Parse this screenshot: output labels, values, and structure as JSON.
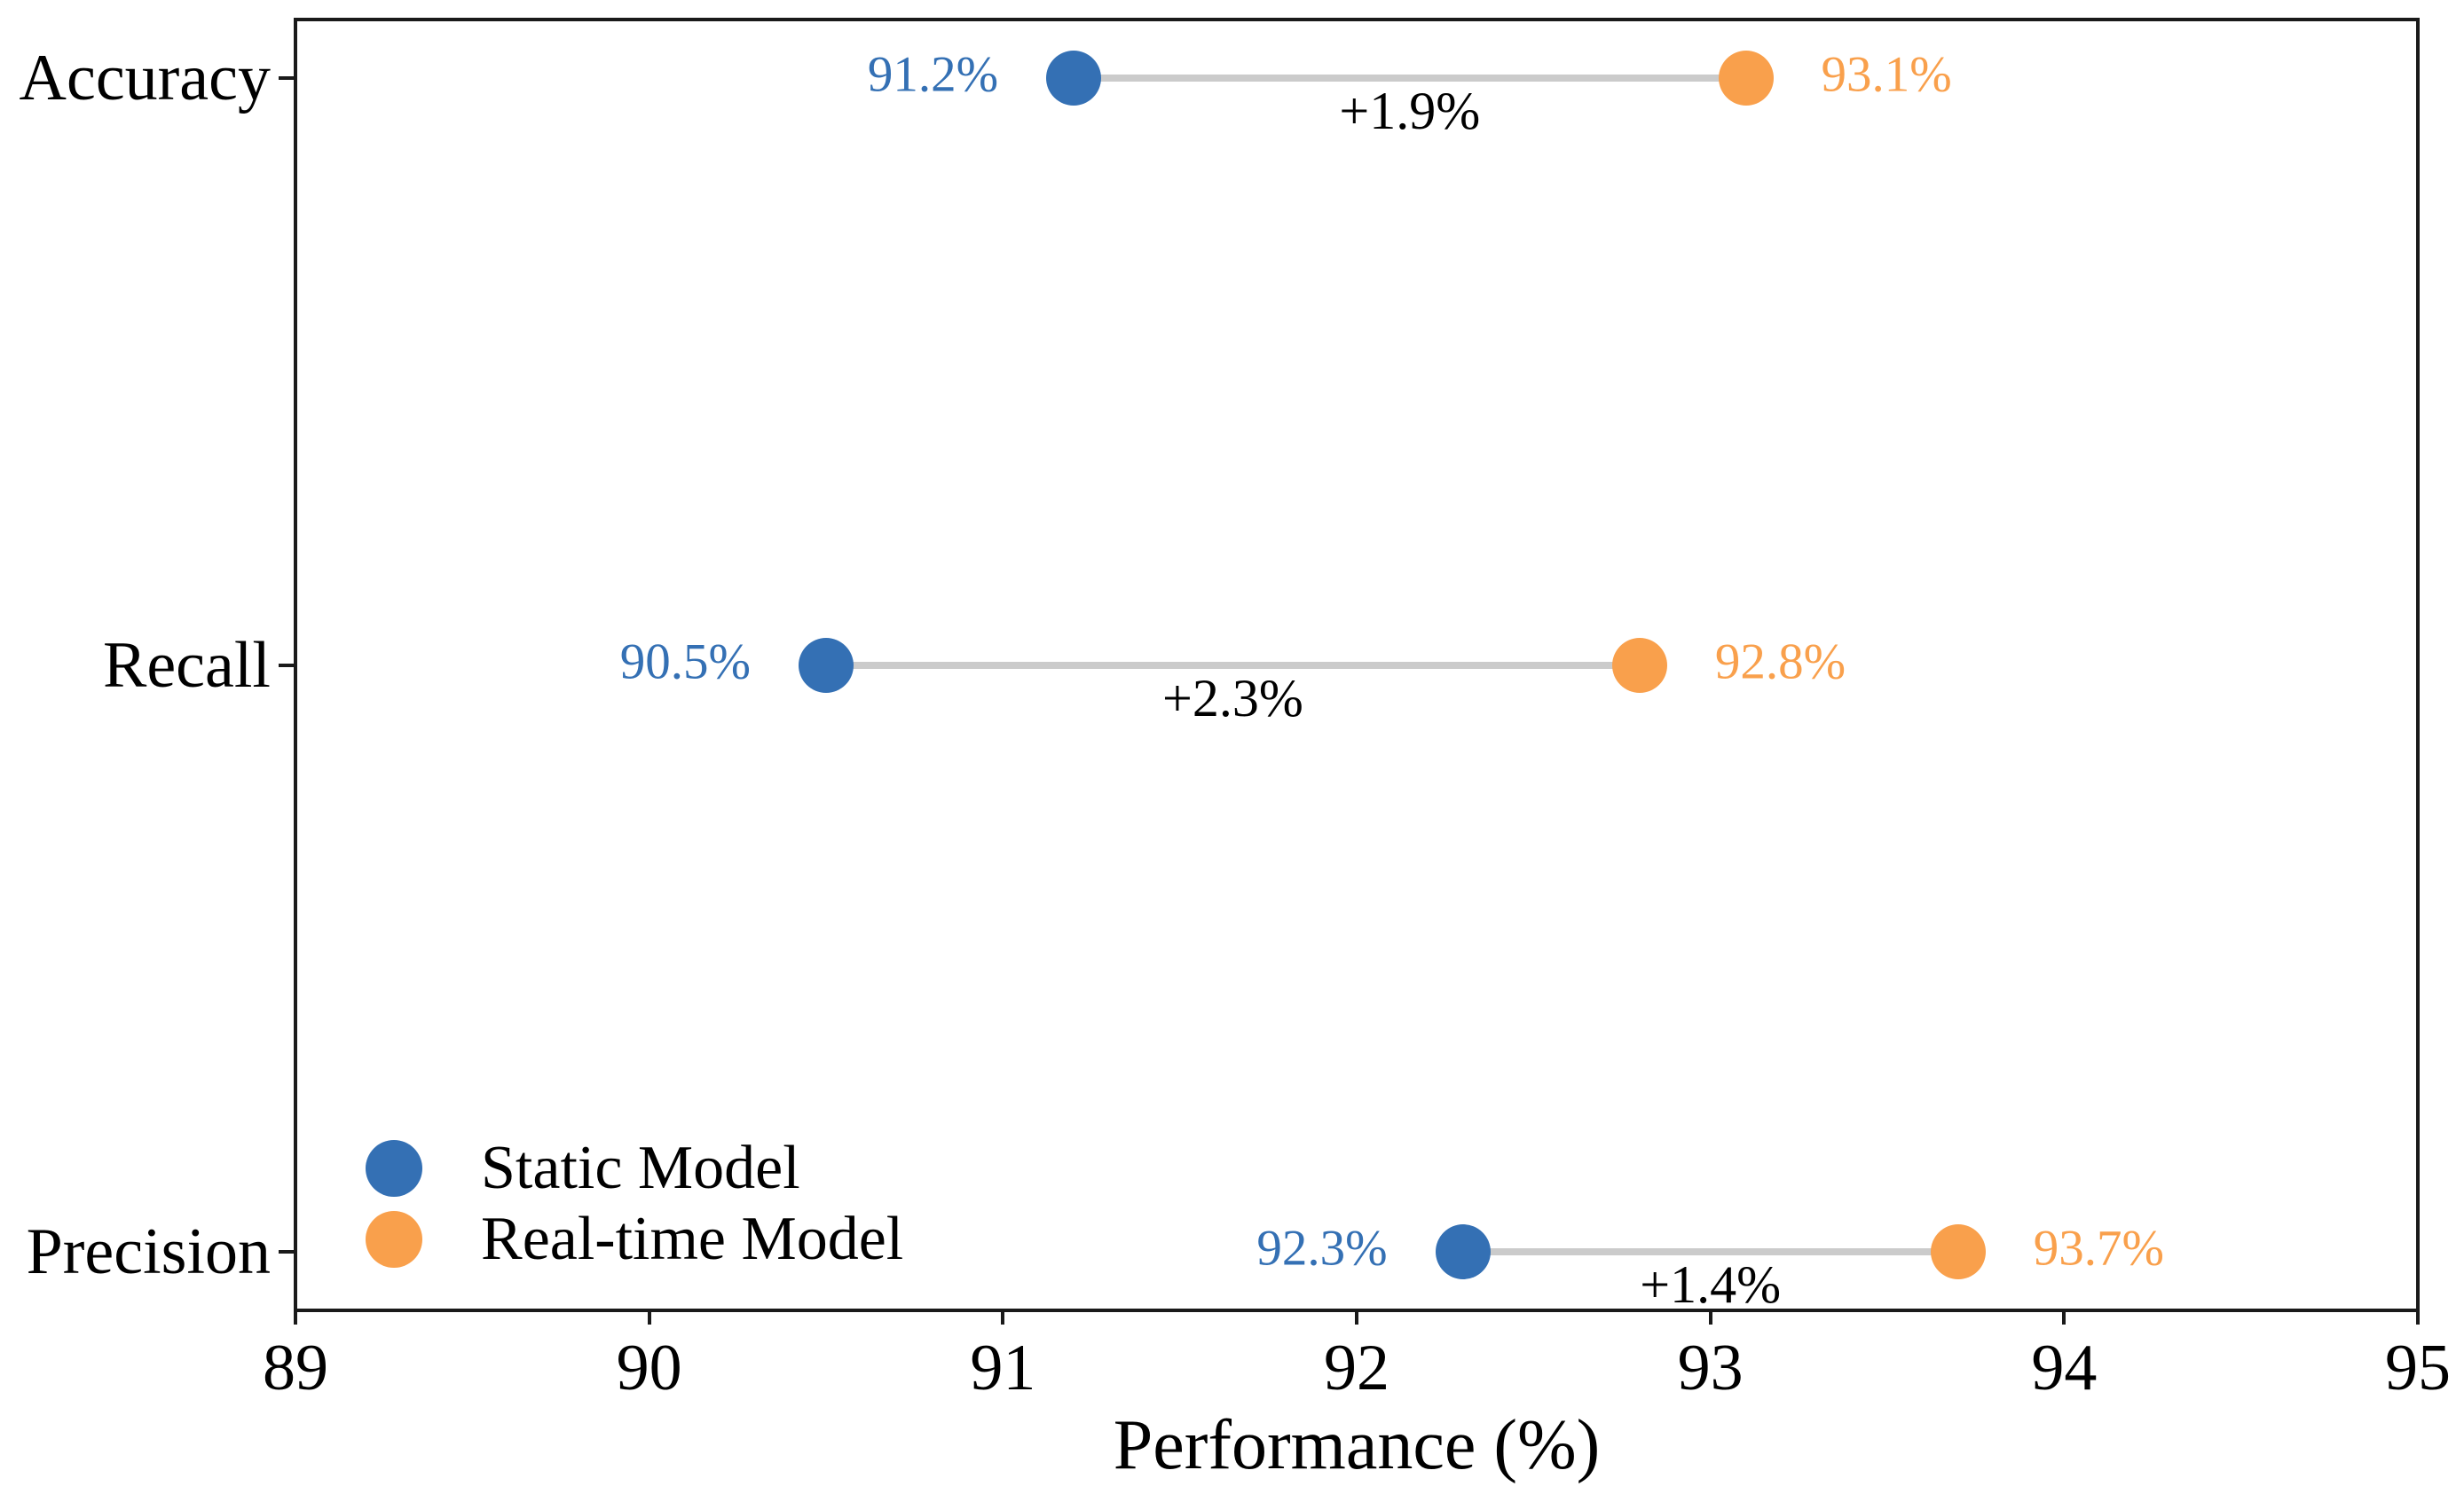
{
  "chart_data": {
    "type": "scatter",
    "variant": "dumbbell",
    "title": "",
    "xlabel": "Performance (%)",
    "ylabel": "",
    "xlim": [
      89,
      95
    ],
    "xticks": [
      "89",
      "90",
      "91",
      "92",
      "93",
      "94",
      "95"
    ],
    "ylim": [
      -0.1,
      2.1
    ],
    "grid": false,
    "categories": [
      "Accuracy",
      "Recall",
      "Precision"
    ],
    "category_positions": [
      2,
      1,
      0
    ],
    "series": [
      {
        "name": "Static Model",
        "color": "#3470B4",
        "values": [
          91.2,
          90.5,
          92.3
        ],
        "point_labels": [
          "91.2%",
          "90.5%",
          "92.3%"
        ]
      },
      {
        "name": "Real-time Model",
        "color": "#F9A04C",
        "values": [
          93.1,
          92.8,
          93.7
        ],
        "point_labels": [
          "93.1%",
          "92.8%",
          "93.7%"
        ]
      }
    ],
    "delta_labels": [
      "+1.9%",
      "+2.3%",
      "+1.4%"
    ],
    "connector_color": "#CBCBCB",
    "legend": {
      "position": "lower-left",
      "items": [
        "Static Model",
        "Real-time Model"
      ]
    }
  }
}
